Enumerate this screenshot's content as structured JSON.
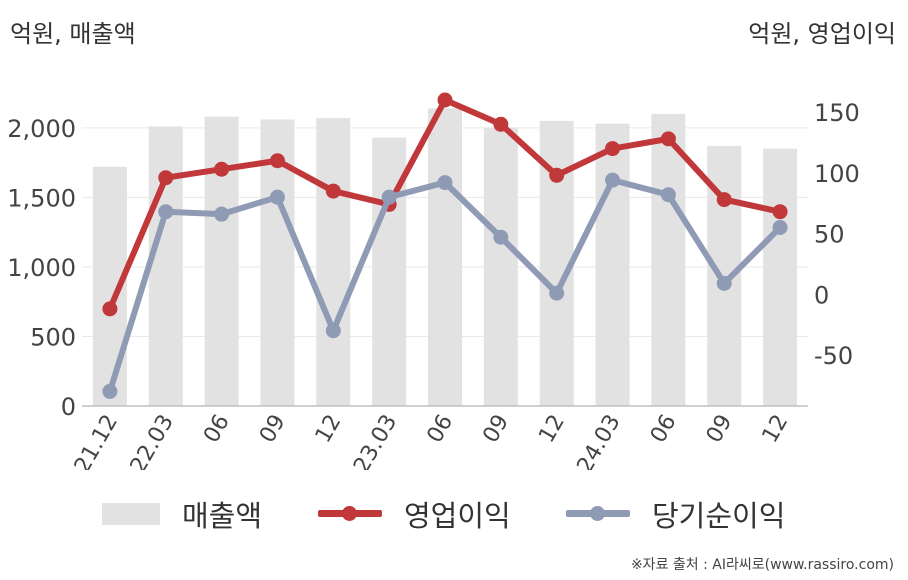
{
  "units": {
    "left": "억원, 매출액",
    "right": "억원, 영업이익"
  },
  "source": "※자료 출처 : AI라씨로(www.rassiro.com)",
  "colors": {
    "sales": "#e2e2e2",
    "op_income": "#c1383a",
    "net_income": "#8f9bb5",
    "grid": "#e9e9e9",
    "axis": "#bfbfbf"
  },
  "legend": [
    {
      "label": "매출액",
      "type": "bar",
      "color": "#e2e2e2"
    },
    {
      "label": "영업이익",
      "type": "line",
      "color": "#c1383a"
    },
    {
      "label": "당기순이익",
      "type": "line",
      "color": "#8f9bb5"
    }
  ],
  "chart_data": {
    "type": "bar+line",
    "categories": [
      "21.12",
      "22.03",
      "06",
      "09",
      "12",
      "23.03",
      "06",
      "09",
      "12",
      "24.03",
      "06",
      "09",
      "12"
    ],
    "y_left": {
      "label": "억원, 매출액",
      "ticks": [
        0,
        500,
        1000,
        1500,
        2000
      ],
      "ylim": [
        0,
        2200
      ]
    },
    "y_right": {
      "label": "억원, 영업이익",
      "ticks": [
        -50,
        0,
        50,
        100,
        150
      ],
      "ylim": [
        -92,
        160
      ]
    },
    "series": [
      {
        "name": "매출액",
        "type": "bar",
        "axis": "left",
        "values": [
          1720,
          2010,
          2080,
          2060,
          2070,
          1930,
          2140,
          2000,
          2050,
          2030,
          2100,
          1870,
          1850
        ]
      },
      {
        "name": "영업이익",
        "type": "line",
        "axis": "right",
        "values": [
          -12,
          96,
          103,
          110,
          85,
          74,
          160,
          140,
          98,
          120,
          128,
          78,
          68
        ]
      },
      {
        "name": "당기순이익",
        "type": "line",
        "axis": "right",
        "values": [
          -80,
          68,
          66,
          80,
          -30,
          80,
          92,
          47,
          1,
          94,
          82,
          9,
          55
        ]
      }
    ],
    "grid": true,
    "legend_position": "bottom"
  }
}
